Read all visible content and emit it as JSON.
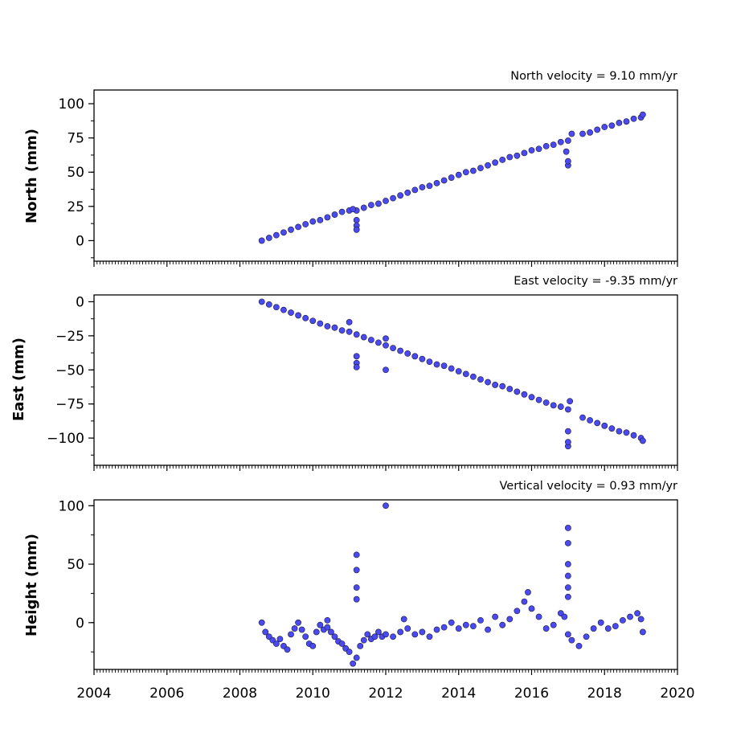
{
  "chart_data": {
    "type": "scatter",
    "marker_color": "#4a4af0",
    "marker_edge": "#1a1a40",
    "xlim": [
      2004,
      2020
    ],
    "x_ticks": [
      2004,
      2006,
      2008,
      2010,
      2012,
      2014,
      2016,
      2018,
      2020
    ],
    "x_tick_labels": [
      "2004",
      "2006",
      "2008",
      "2010",
      "2012",
      "2014",
      "2016",
      "2018",
      "2020"
    ],
    "panels": [
      {
        "id": "north",
        "title": "North velocity = 9.10 mm/yr",
        "ylabel": "North (mm)",
        "ylim": [
          -15,
          110
        ],
        "y_ticks": [
          0,
          25,
          50,
          75,
          100
        ],
        "y_tick_labels": [
          "0",
          "25",
          "50",
          "75",
          "100"
        ],
        "series": [
          {
            "x": [
              2008.6,
              2008.8,
              2009.0,
              2009.2,
              2009.4,
              2009.6,
              2009.8,
              2010.0,
              2010.2,
              2010.4,
              2010.6,
              2010.8,
              2011.0,
              2011.2,
              2011.4,
              2011.6,
              2011.8,
              2012.0,
              2012.2,
              2012.4,
              2012.6,
              2012.8,
              2013.0,
              2013.2,
              2013.4,
              2013.6,
              2013.8,
              2014.0,
              2014.2,
              2014.4,
              2014.6,
              2014.8,
              2015.0,
              2015.2,
              2015.4,
              2015.6,
              2015.8,
              2016.0,
              2016.2,
              2016.4,
              2016.6,
              2016.8,
              2017.0,
              2017.4,
              2017.6,
              2017.8,
              2018.0,
              2018.2,
              2018.4,
              2018.6,
              2018.8,
              2019.0,
              2019.05,
              2011.2,
              2011.2,
              2011.2,
              2011.1,
              2017.0,
              2017.0,
              2017.1,
              2016.95
            ],
            "y": [
              0,
              2,
              4,
              6,
              8,
              10,
              12,
              14,
              15,
              17,
              19,
              21,
              22,
              22,
              24,
              26,
              27,
              29,
              31,
              33,
              35,
              37,
              39,
              40,
              42,
              44,
              46,
              48,
              50,
              51,
              53,
              55,
              57,
              59,
              61,
              62,
              64,
              66,
              67,
              69,
              70,
              72,
              73,
              78,
              79,
              81,
              83,
              84,
              86,
              87,
              89,
              90,
              92,
              15,
              11,
              8,
              23,
              55,
              58,
              78,
              65
            ]
          }
        ]
      },
      {
        "id": "east",
        "title": "East velocity = -9.35 mm/yr",
        "ylabel": "East (mm)",
        "ylim": [
          -120,
          5
        ],
        "y_ticks": [
          0,
          -25,
          -50,
          -75,
          -100
        ],
        "y_tick_labels": [
          "0",
          "−25",
          "−50",
          "−75",
          "−100"
        ],
        "series": [
          {
            "x": [
              2008.6,
              2008.8,
              2009.0,
              2009.2,
              2009.4,
              2009.6,
              2009.8,
              2010.0,
              2010.2,
              2010.4,
              2010.6,
              2010.8,
              2011.0,
              2011.2,
              2011.4,
              2011.6,
              2011.8,
              2012.0,
              2012.2,
              2012.4,
              2012.6,
              2012.8,
              2013.0,
              2013.2,
              2013.4,
              2013.6,
              2013.8,
              2014.0,
              2014.2,
              2014.4,
              2014.6,
              2014.8,
              2015.0,
              2015.2,
              2015.4,
              2015.6,
              2015.8,
              2016.0,
              2016.2,
              2016.4,
              2016.6,
              2016.8,
              2017.0,
              2017.4,
              2017.6,
              2017.8,
              2018.0,
              2018.2,
              2018.4,
              2018.6,
              2018.8,
              2019.0,
              2019.05,
              2011.2,
              2011.2,
              2011.2,
              2011.0,
              2012.0,
              2012.0,
              2017.0,
              2017.0,
              2017.0,
              2017.05
            ],
            "y": [
              0,
              -2,
              -4,
              -6,
              -8,
              -10,
              -12,
              -14,
              -16,
              -18,
              -19,
              -21,
              -22,
              -24,
              -26,
              -28,
              -30,
              -32,
              -34,
              -36,
              -38,
              -40,
              -42,
              -44,
              -46,
              -47,
              -49,
              -51,
              -53,
              -55,
              -57,
              -59,
              -61,
              -62,
              -64,
              -66,
              -68,
              -70,
              -72,
              -74,
              -76,
              -77,
              -79,
              -85,
              -87,
              -89,
              -91,
              -93,
              -95,
              -96,
              -98,
              -100,
              -102,
              -40,
              -45,
              -48,
              -15,
              -27,
              -50,
              -106,
              -103,
              -95,
              -73
            ]
          }
        ]
      },
      {
        "id": "height",
        "title": "Vertical velocity = 0.93 mm/yr",
        "ylabel": "Height (mm)",
        "ylim": [
          -40,
          105
        ],
        "y_ticks": [
          0,
          50,
          100
        ],
        "y_tick_labels": [
          "0",
          "50",
          "100"
        ],
        "series": [
          {
            "x": [
              2008.6,
              2008.7,
              2008.8,
              2008.9,
              2009.0,
              2009.1,
              2009.2,
              2009.3,
              2009.4,
              2009.5,
              2009.6,
              2009.7,
              2009.8,
              2009.9,
              2010.0,
              2010.1,
              2010.2,
              2010.3,
              2010.4,
              2010.5,
              2010.6,
              2010.7,
              2010.8,
              2010.9,
              2011.0,
              2011.1,
              2011.2,
              2011.3,
              2011.4,
              2011.5,
              2011.6,
              2011.7,
              2011.8,
              2011.9,
              2012.0,
              2012.2,
              2012.4,
              2012.6,
              2012.8,
              2013.0,
              2013.2,
              2013.4,
              2013.6,
              2013.8,
              2014.0,
              2014.2,
              2014.4,
              2014.6,
              2014.8,
              2015.0,
              2015.2,
              2015.4,
              2015.6,
              2015.8,
              2016.0,
              2016.2,
              2016.4,
              2016.6,
              2016.8,
              2016.9,
              2017.0,
              2017.1,
              2017.3,
              2017.5,
              2017.7,
              2017.9,
              2018.1,
              2018.3,
              2018.5,
              2018.7,
              2018.9,
              2019.0,
              2019.05,
              2011.2,
              2011.2,
              2011.2,
              2011.2,
              2012.0,
              2017.0,
              2017.0,
              2017.0,
              2017.0,
              2017.0,
              2017.0,
              2010.4,
              2012.5,
              2015.9
            ],
            "y": [
              0,
              -8,
              -12,
              -15,
              -18,
              -14,
              -20,
              -23,
              -10,
              -5,
              0,
              -6,
              -12,
              -18,
              -20,
              -8,
              -2,
              -6,
              -4,
              -8,
              -12,
              -16,
              -18,
              -22,
              -25,
              -35,
              -30,
              -20,
              -15,
              -10,
              -14,
              -12,
              -8,
              -12,
              -10,
              -12,
              -8,
              -5,
              -10,
              -8,
              -12,
              -6,
              -4,
              0,
              -5,
              -2,
              -3,
              2,
              -6,
              5,
              -2,
              3,
              10,
              18,
              12,
              5,
              -5,
              -2,
              8,
              5,
              -10,
              -15,
              -20,
              -12,
              -5,
              0,
              -5,
              -3,
              2,
              5,
              8,
              3,
              -8,
              58,
              45,
              30,
              20,
              100,
              81,
              68,
              50,
              40,
              30,
              22,
              2,
              3,
              26
            ]
          }
        ]
      }
    ]
  }
}
